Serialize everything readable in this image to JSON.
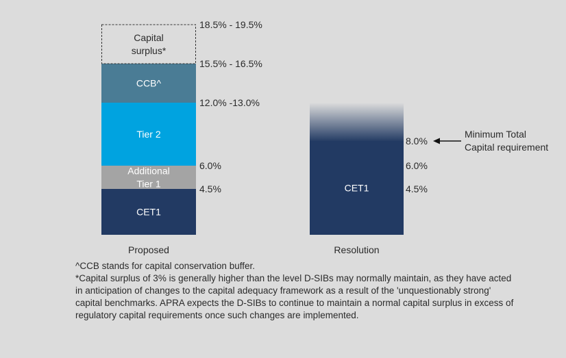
{
  "chart_data": [
    {
      "type": "bar",
      "stacked": true,
      "category": "Proposed",
      "segments": [
        {
          "name": "CET1",
          "from": 0,
          "to": 4.5,
          "label_lines": [
            "CET1"
          ],
          "color": "#223a63",
          "label_color": "#ffffff"
        },
        {
          "name": "Additional Tier 1",
          "from": 4.5,
          "to": 6.0,
          "label_lines": [
            "Additional",
            "Tier 1"
          ],
          "color": "#a4a4a4",
          "label_color": "#ffffff"
        },
        {
          "name": "Tier 2",
          "from": 6.0,
          "to": 12.5,
          "label_lines": [
            "Tier 2"
          ],
          "color": "#00a3e0",
          "label_color": "#ffffff"
        },
        {
          "name": "CCB^",
          "from": 12.5,
          "to": 16.0,
          "label_lines": [
            "CCB^"
          ],
          "color": "#4a7c95",
          "label_color": "#ffffff"
        },
        {
          "name": "Capital surplus*",
          "from": 16.0,
          "to": 19.0,
          "label_lines": [
            "Capital",
            "surplus*"
          ],
          "color": "none",
          "label_color": "#2a2a2a",
          "style": "dashed-outline"
        }
      ],
      "level_labels": [
        {
          "text": "18.5% - 19.5%",
          "at": 19.0
        },
        {
          "text": "15.5% - 16.5%",
          "at": 16.0
        },
        {
          "text": "12.0% -13.0%",
          "at": 12.5
        },
        {
          "text": "6.0%",
          "at": 6.0
        },
        {
          "text": "4.5%",
          "at": 4.5
        }
      ]
    },
    {
      "type": "bar",
      "stacked": false,
      "category": "Resolution",
      "segments": [
        {
          "name": "CET1",
          "from": 0,
          "to": 8.0,
          "fade_to": 12.5,
          "label_lines": [
            "CET1"
          ],
          "color": "#223a63",
          "label_color": "#ffffff",
          "style": "gradient-top"
        }
      ],
      "level_labels": [
        {
          "text": "8.0%",
          "at": 8.0
        },
        {
          "text": "6.0%",
          "at": 6.0
        },
        {
          "text": "4.5%",
          "at": 4.5
        }
      ],
      "annotation": {
        "lines": [
          "Minimum Total",
          "Capital requirement"
        ],
        "points_to": 8.0
      }
    }
  ],
  "notes": [
    "^CCB stands for capital conservation buffer.",
    "*Capital surplus of 3% is generally higher than the level D-SIBs may normally maintain, as they have acted in anticipation of changes to the capital adequacy framework as a result of the 'unquestionably strong' capital benchmarks. APRA expects the D-SIBs to continue to maintain a normal capital surplus in excess of regulatory capital requirements once such changes are implemented."
  ]
}
